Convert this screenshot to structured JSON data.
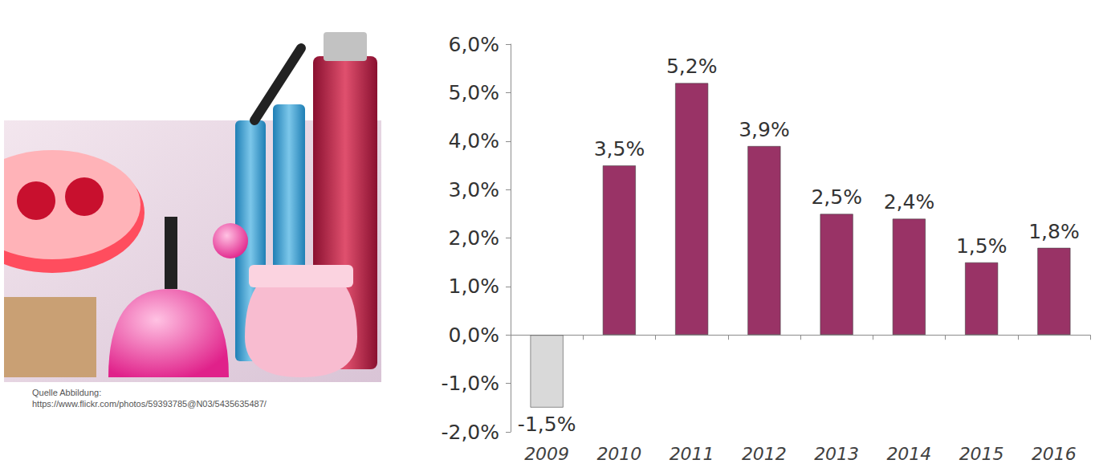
{
  "chart_data": {
    "type": "bar",
    "annotations": [
      "Quelle Abbildung:",
      "https://www.flickr.com/photos/59393785@N03/5435635487/"
    ],
    "categories": [
      "2009",
      "2010",
      "2011",
      "2012",
      "2013",
      "2014",
      "2015",
      "2016"
    ],
    "values": [
      -1.5,
      3.5,
      5.2,
      3.9,
      2.5,
      2.4,
      1.5,
      1.8
    ],
    "value_labels": [
      "-1,5%",
      "3,5%",
      "5,2%",
      "3,9%",
      "2,5%",
      "2,4%",
      "1,5%",
      "1,8%"
    ],
    "colors": [
      "#d9d9d9",
      "#993366",
      "#993366",
      "#993366",
      "#993366",
      "#993366",
      "#993366",
      "#993366"
    ],
    "ylim": [
      -2,
      6
    ],
    "yticks": [
      {
        "value": -2,
        "label": "-2,0%"
      },
      {
        "value": -1,
        "label": "-1,0%"
      },
      {
        "value": 0,
        "label": "0,0%"
      },
      {
        "value": 1,
        "label": "1,0%"
      },
      {
        "value": 2,
        "label": "2,0%"
      },
      {
        "value": 3,
        "label": "3,0%"
      },
      {
        "value": 4,
        "label": "4,0%"
      },
      {
        "value": 5,
        "label": "5,0%"
      },
      {
        "value": 6,
        "label": "6,0%"
      }
    ],
    "grid": false,
    "data_labels": true
  }
}
